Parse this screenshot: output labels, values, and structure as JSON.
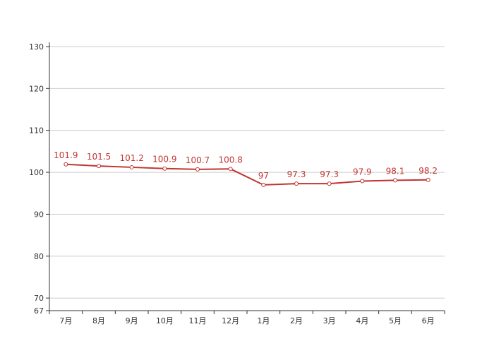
{
  "chart_data": {
    "type": "line",
    "title": "",
    "xlabel": "",
    "ylabel": "",
    "categories": [
      "7月",
      "8月",
      "9月",
      "10月",
      "11月",
      "12月",
      "1月",
      "2月",
      "3月",
      "4月",
      "5月",
      "6月"
    ],
    "series": [
      {
        "values": [
          101.9,
          101.5,
          101.2,
          100.9,
          100.7,
          100.8,
          97,
          97.3,
          97.3,
          97.9,
          98.1,
          98.2
        ]
      }
    ],
    "data_labels": [
      "101.9",
      "101.5",
      "101.2",
      "100.9",
      "100.7",
      "100.8",
      "97",
      "97.3",
      "97.3",
      "97.9",
      "98.1",
      "98.2"
    ],
    "ylim": [
      67,
      131
    ],
    "yticks": [
      130,
      120,
      110,
      100,
      90,
      80,
      70,
      67
    ],
    "grid": true,
    "legend": "none",
    "colors": {
      "line": "#c23531",
      "grid": "#cccccc",
      "axis": "#333333",
      "text": "#333333"
    }
  }
}
